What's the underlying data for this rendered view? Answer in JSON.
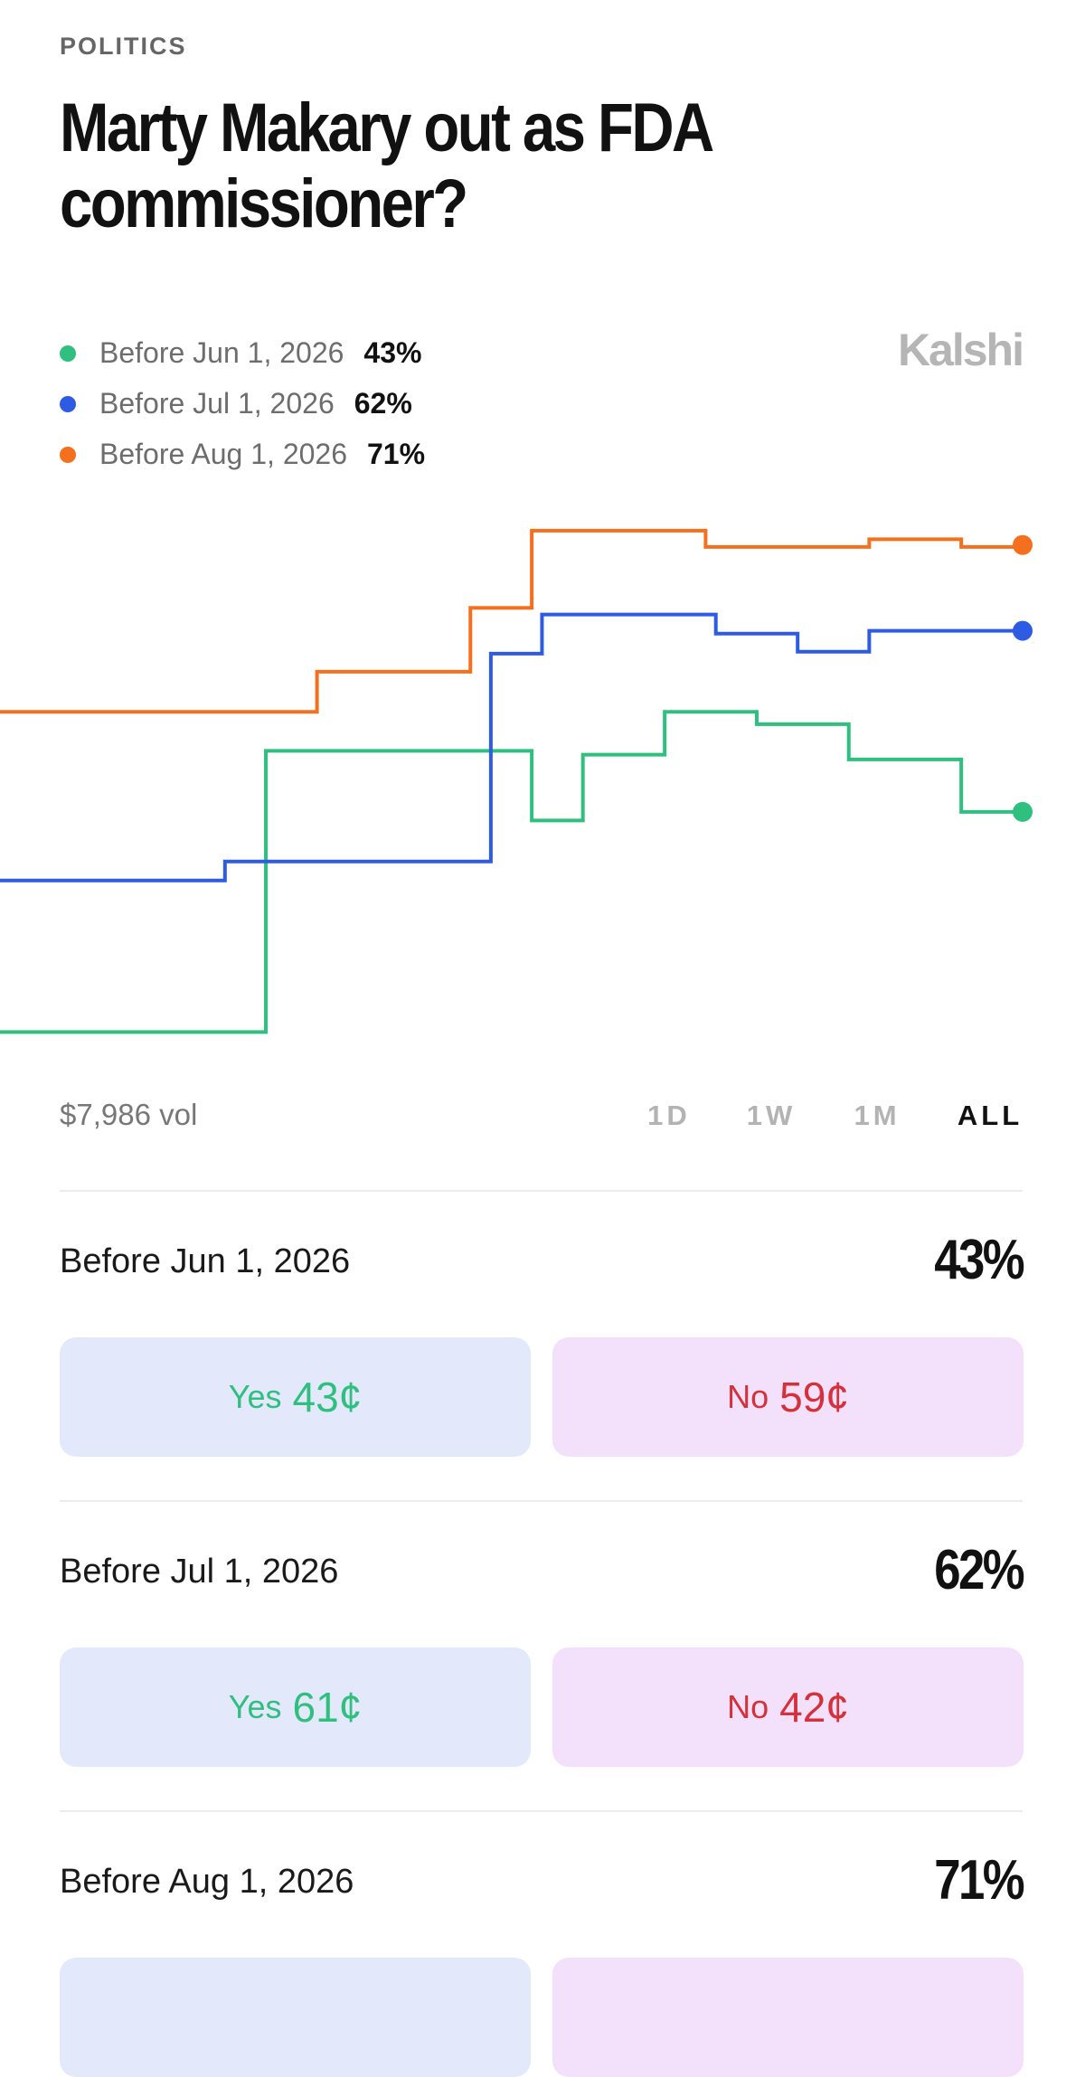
{
  "category": "POLITICS",
  "title": "Marty Makary out as FDA commissioner?",
  "brand": "Kalshi",
  "chart_data": {
    "type": "line",
    "step": true,
    "xlim": [
      0,
      100
    ],
    "ylim": [
      17,
      76
    ],
    "series": [
      {
        "name": "Before Jun 1, 2026",
        "color": "#2fbf7f",
        "x": [
          0,
          26,
          52,
          57,
          65,
          74,
          83,
          94,
          100
        ],
        "values": [
          19.9,
          49.4,
          42.1,
          49.0,
          53.5,
          52.2,
          48.5,
          43,
          43
        ]
      },
      {
        "name": "Before Jul 1, 2026",
        "color": "#2d5be3",
        "x": [
          0,
          22,
          48,
          53,
          70,
          78,
          85,
          100
        ],
        "values": [
          35.8,
          37.8,
          59.6,
          63.7,
          61.7,
          59.8,
          62,
          62
        ]
      },
      {
        "name": "Before Aug 1, 2026",
        "color": "#f5701e",
        "x": [
          0,
          31,
          46,
          52,
          69,
          85,
          94,
          100
        ],
        "values": [
          53.5,
          57.7,
          64.4,
          72.5,
          70.8,
          71.6,
          70.8,
          71
        ]
      }
    ]
  },
  "volume": "$7,986 vol",
  "ranges": [
    "1D",
    "1W",
    "1M",
    "ALL"
  ],
  "selected_range": 3,
  "markets": [
    {
      "name": "Before Jun 1, 2026",
      "chance": "43%",
      "yes_label": "Yes",
      "yes_price": "43¢",
      "no_label": "No",
      "no_price": "59¢"
    },
    {
      "name": "Before Jul 1, 2026",
      "chance": "62%",
      "yes_label": "Yes",
      "yes_price": "61¢",
      "no_label": "No",
      "no_price": "42¢"
    },
    {
      "name": "Before Aug 1, 2026",
      "chance": "71%"
    }
  ]
}
